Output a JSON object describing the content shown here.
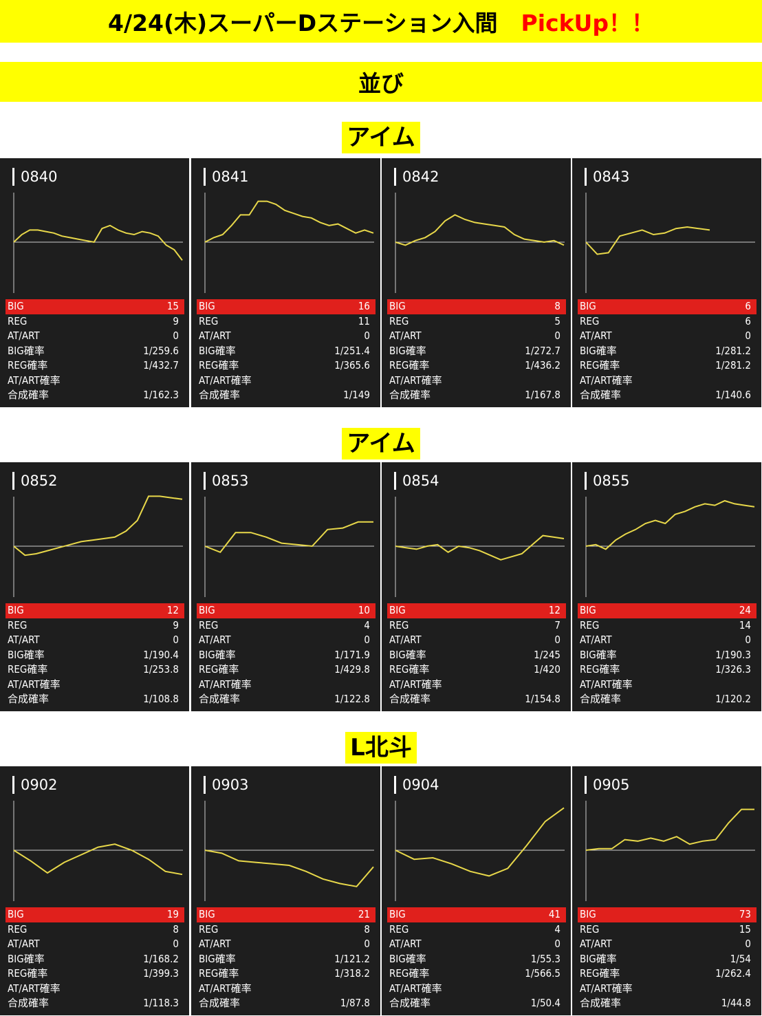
{
  "title": {
    "text": "4/24(木)スーパーDステーション入間",
    "pickup": "PickUp！！"
  },
  "subtitle": "並び",
  "colors": {
    "banner": "#ffff00",
    "card_bg": "#1e1e1e",
    "big_row": "#e0201c",
    "line": "#e8d84a"
  },
  "stat_labels": {
    "big": "BIG",
    "reg": "REG",
    "at": "AT/ART",
    "big_rate": "BIG確率",
    "reg_rate": "REG確率",
    "at_rate": "AT/ART確率",
    "total_rate": "合成確率"
  },
  "sections": [
    {
      "label": "アイム",
      "machines": [
        {
          "number": "0840",
          "big": "15",
          "reg": "9",
          "at": "0",
          "big_rate": "1/259.6",
          "reg_rate": "1/432.7",
          "at_rate": "",
          "total_rate": "1/162.3",
          "graph": [
            0,
            0.05,
            0.08,
            0.08,
            0.07,
            0.06,
            0.04,
            0.03,
            0.02,
            0.01,
            0,
            0.09,
            0.11,
            0.08,
            0.06,
            0.05,
            0.07,
            0.06,
            0.04,
            -0.02,
            -0.05,
            -0.12
          ]
        },
        {
          "number": "0841",
          "big": "16",
          "reg": "11",
          "at": "0",
          "big_rate": "1/251.4",
          "reg_rate": "1/365.6",
          "at_rate": "",
          "total_rate": "1/149",
          "graph": [
            0,
            0.03,
            0.05,
            0.11,
            0.18,
            0.18,
            0.27,
            0.27,
            0.25,
            0.21,
            0.19,
            0.17,
            0.16,
            0.13,
            0.11,
            0.12,
            0.09,
            0.06,
            0.08,
            0.06
          ]
        },
        {
          "number": "0842",
          "big": "8",
          "reg": "5",
          "at": "0",
          "big_rate": "1/272.7",
          "reg_rate": "1/436.2",
          "at_rate": "",
          "total_rate": "1/167.8",
          "graph": [
            0,
            -0.02,
            0.01,
            0.03,
            0.07,
            0.14,
            0.18,
            0.15,
            0.13,
            0.12,
            0.11,
            0.1,
            0.05,
            0.02,
            0.01,
            0,
            0.01,
            -0.02
          ]
        },
        {
          "number": "0843",
          "big": "6",
          "reg": "6",
          "at": "0",
          "big_rate": "1/281.2",
          "reg_rate": "1/281.2",
          "at_rate": "",
          "total_rate": "1/140.6",
          "graph": [
            0,
            -0.08,
            -0.07,
            0.04,
            0.06,
            0.08,
            0.05,
            0.06,
            0.09,
            0.1,
            0.09,
            0.08
          ]
        }
      ]
    },
    {
      "label": "アイム",
      "machines": [
        {
          "number": "0852",
          "big": "12",
          "reg": "9",
          "at": "0",
          "big_rate": "1/190.4",
          "reg_rate": "1/253.8",
          "at_rate": "",
          "total_rate": "1/108.8",
          "graph": [
            0,
            -0.06,
            -0.05,
            -0.03,
            -0.01,
            0.01,
            0.03,
            0.04,
            0.05,
            0.06,
            0.1,
            0.17,
            0.33,
            0.33,
            0.32,
            0.31
          ]
        },
        {
          "number": "0853",
          "big": "10",
          "reg": "4",
          "at": "0",
          "big_rate": "1/171.9",
          "reg_rate": "1/429.8",
          "at_rate": "",
          "total_rate": "1/122.8",
          "graph": [
            0,
            -0.04,
            0.09,
            0.09,
            0.06,
            0.02,
            0.01,
            0,
            0.11,
            0.12,
            0.16,
            0.16
          ]
        },
        {
          "number": "0854",
          "big": "12",
          "reg": "7",
          "at": "0",
          "big_rate": "1/245",
          "reg_rate": "1/420",
          "at_rate": "",
          "total_rate": "1/154.8",
          "graph": [
            0,
            -0.01,
            -0.02,
            0.0,
            0.01,
            -0.04,
            0.0,
            -0.01,
            -0.03,
            -0.06,
            -0.09,
            -0.07,
            -0.05,
            0.01,
            0.07,
            0.06,
            0.05
          ]
        },
        {
          "number": "0855",
          "big": "24",
          "reg": "14",
          "at": "0",
          "big_rate": "1/190.3",
          "reg_rate": "1/326.3",
          "at_rate": "",
          "total_rate": "1/120.2",
          "graph": [
            0,
            0.01,
            -0.02,
            0.04,
            0.08,
            0.11,
            0.15,
            0.17,
            0.15,
            0.21,
            0.23,
            0.26,
            0.28,
            0.27,
            0.3,
            0.28,
            0.27,
            0.26
          ]
        }
      ]
    },
    {
      "label": "L北斗",
      "machines": [
        {
          "number": "0902",
          "big": "19",
          "reg": "8",
          "at": "0",
          "big_rate": "1/168.2",
          "reg_rate": "1/399.3",
          "at_rate": "",
          "total_rate": "1/118.3",
          "graph": [
            0,
            -0.07,
            -0.15,
            -0.08,
            -0.03,
            0.02,
            0.04,
            0.0,
            -0.06,
            -0.14,
            -0.16
          ]
        },
        {
          "number": "0903",
          "big": "21",
          "reg": "8",
          "at": "0",
          "big_rate": "1/121.2",
          "reg_rate": "1/318.2",
          "at_rate": "",
          "total_rate": "1/87.8",
          "graph": [
            0,
            -0.02,
            -0.07,
            -0.08,
            -0.09,
            -0.1,
            -0.14,
            -0.19,
            -0.22,
            -0.24,
            -0.11
          ]
        },
        {
          "number": "0904",
          "big": "41",
          "reg": "4",
          "at": "0",
          "big_rate": "1/55.3",
          "reg_rate": "1/566.5",
          "at_rate": "",
          "total_rate": "1/50.4",
          "graph": [
            0,
            -0.06,
            -0.05,
            -0.09,
            -0.14,
            -0.17,
            -0.12,
            0.03,
            0.19,
            0.28
          ]
        },
        {
          "number": "0905",
          "big": "73",
          "reg": "15",
          "at": "0",
          "big_rate": "1/54",
          "reg_rate": "1/262.4",
          "at_rate": "",
          "total_rate": "1/44.8",
          "graph": [
            0,
            0.01,
            0.01,
            0.07,
            0.06,
            0.08,
            0.06,
            0.09,
            0.04,
            0.06,
            0.07,
            0.18,
            0.27,
            0.27
          ]
        }
      ]
    }
  ]
}
